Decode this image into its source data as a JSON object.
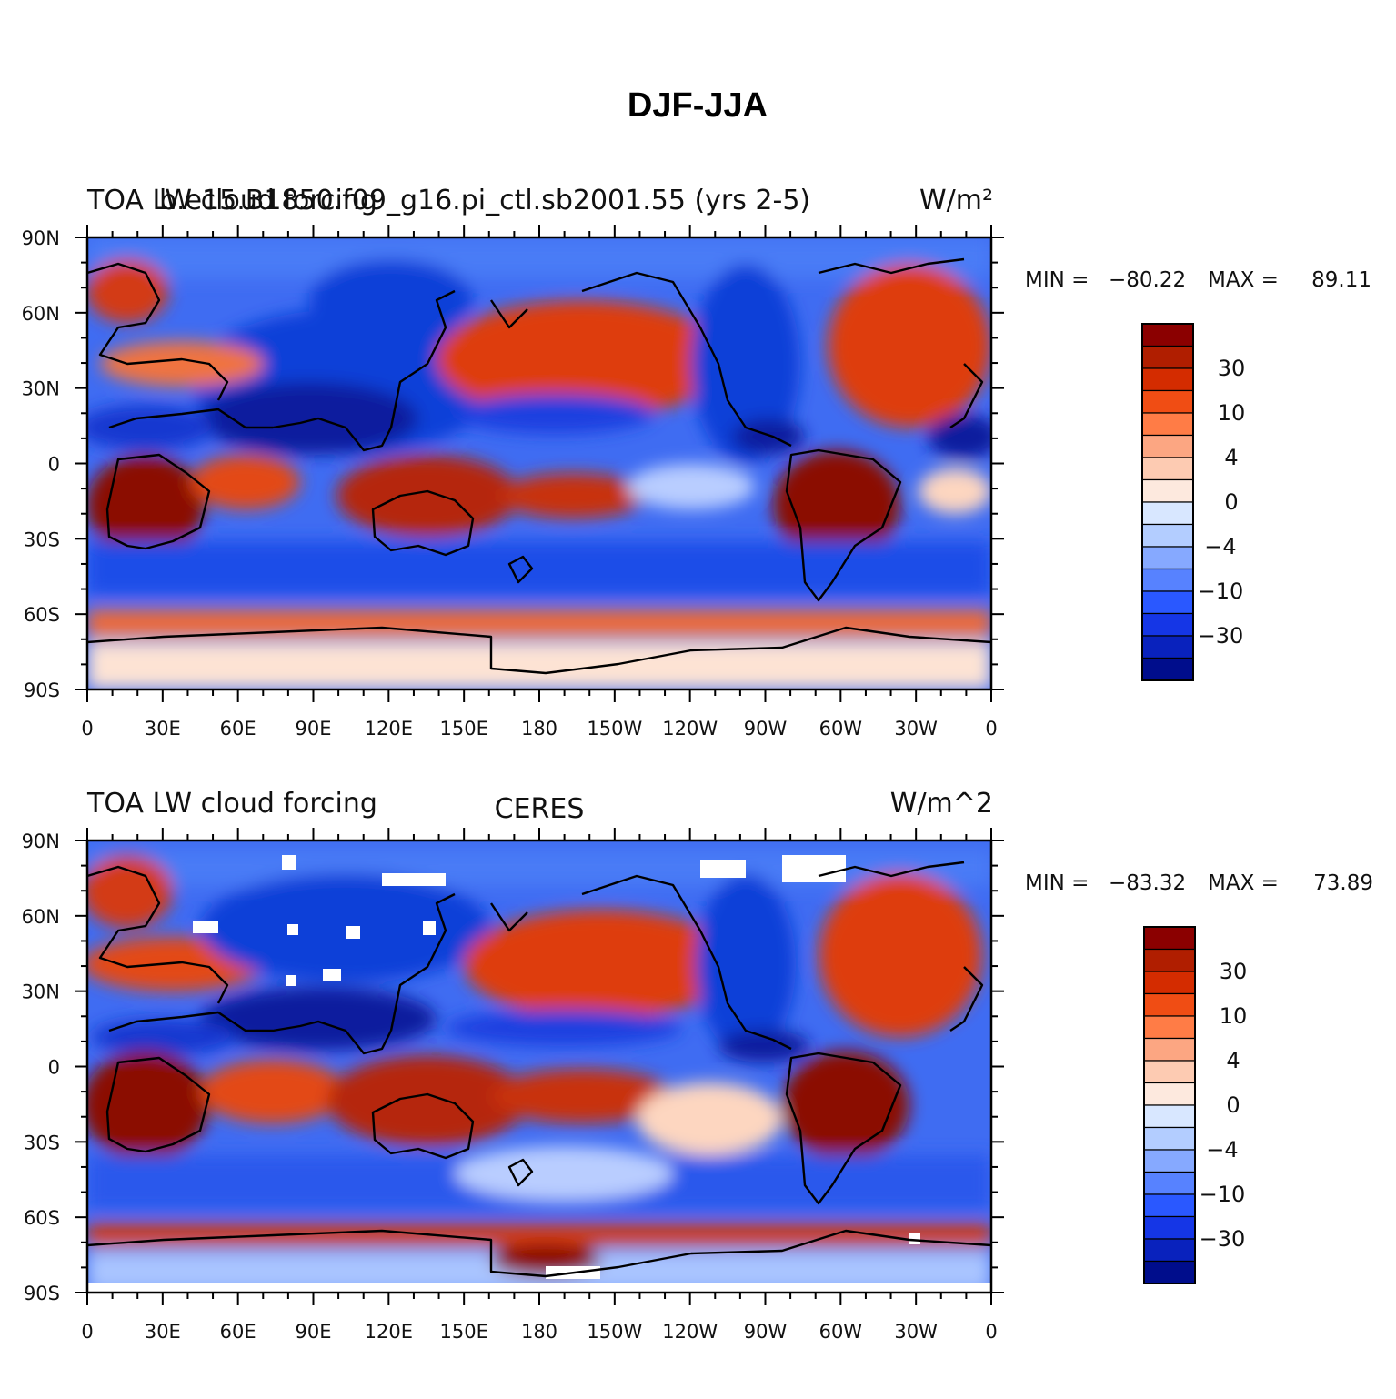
{
  "figure": {
    "title": "DJF-JJA"
  },
  "panels": [
    {
      "left_label": "TOA LW cloud forcing",
      "center_label": "b.e15.B1850.f09_g16.pi_ctl.sb2001.55 (yrs 2-5)",
      "units": "W/m²",
      "min_label": "MIN =",
      "min": "-80.22",
      "max_label": "MAX =",
      "max": "89.11"
    },
    {
      "left_label": "TOA LW cloud forcing",
      "center_label": "CERES",
      "units": "W/m^2",
      "min_label": "MIN =",
      "min": "-83.32",
      "max_label": "MAX =",
      "max": "73.89"
    }
  ],
  "axes": {
    "lon_labels": [
      "0",
      "30E",
      "60E",
      "90E",
      "120E",
      "150E",
      "180",
      "150W",
      "120W",
      "90W",
      "60W",
      "30W",
      "0"
    ],
    "lat_labels": [
      "90N",
      "60N",
      "30N",
      "0",
      "30S",
      "60S",
      "90S"
    ]
  },
  "colorbar": {
    "labels": [
      "30",
      "10",
      "4",
      "0",
      "-4",
      "-10",
      "-30"
    ],
    "colors": [
      "#8b0000",
      "#b01e00",
      "#d42c00",
      "#f04d14",
      "#ff7c46",
      "#fca682",
      "#fdcbb2",
      "#fde9de",
      "#d8e7ff",
      "#b3cdff",
      "#86a9ff",
      "#5782ff",
      "#2a58ff",
      "#1536e6",
      "#0922bd",
      "#000d8c"
    ]
  }
}
